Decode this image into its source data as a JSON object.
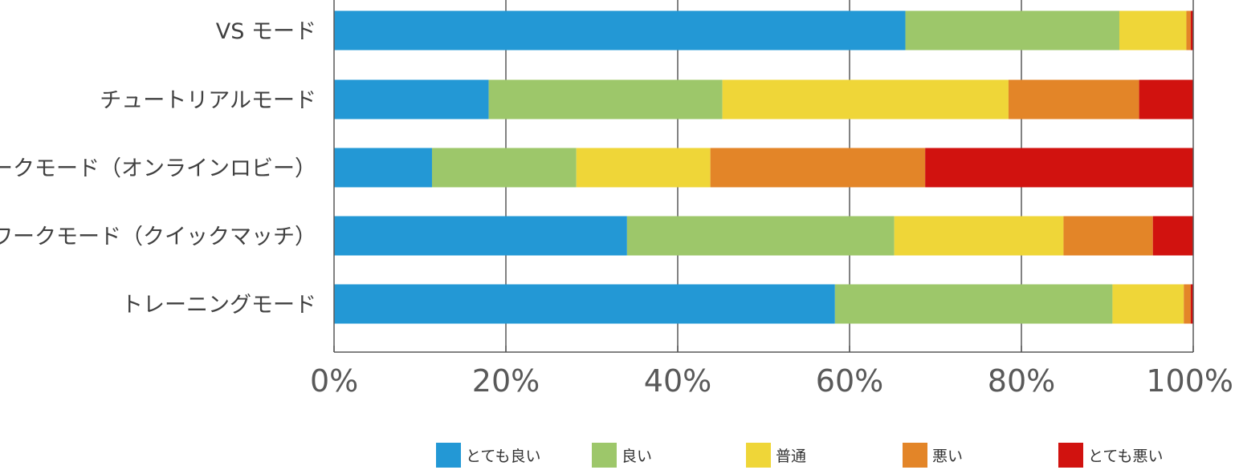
{
  "chart_data": {
    "type": "bar",
    "orientation": "horizontal",
    "stacked": true,
    "categories": [
      "VS モード",
      "チュートリアルモード",
      "ネットワークモード（オンラインロビー）",
      "ネットワークモード（クイックマッチ）",
      "トレーニングモード"
    ],
    "series": [
      {
        "name": "とても良い",
        "color": "#2398D5",
        "values": [
          66.5,
          18.0,
          11.4,
          34.1,
          58.3
        ]
      },
      {
        "name": "良い",
        "color": "#9DC76A",
        "values": [
          24.9,
          27.2,
          16.8,
          31.1,
          32.3
        ]
      },
      {
        "name": "普通",
        "color": "#EFD638",
        "values": [
          7.8,
          33.3,
          15.6,
          19.7,
          8.3
        ]
      },
      {
        "name": "悪い",
        "color": "#E38528",
        "values": [
          0.5,
          15.2,
          25.0,
          10.4,
          0.8
        ]
      },
      {
        "name": "とても悪い",
        "color": "#D1120F",
        "values": [
          0.3,
          6.3,
          31.2,
          4.7,
          0.3
        ]
      }
    ],
    "x_ticks": [
      "0%",
      "20%",
      "40%",
      "60%",
      "80%",
      "100%"
    ],
    "xlim": [
      0,
      100
    ],
    "grid": true,
    "legend_position": "bottom"
  }
}
